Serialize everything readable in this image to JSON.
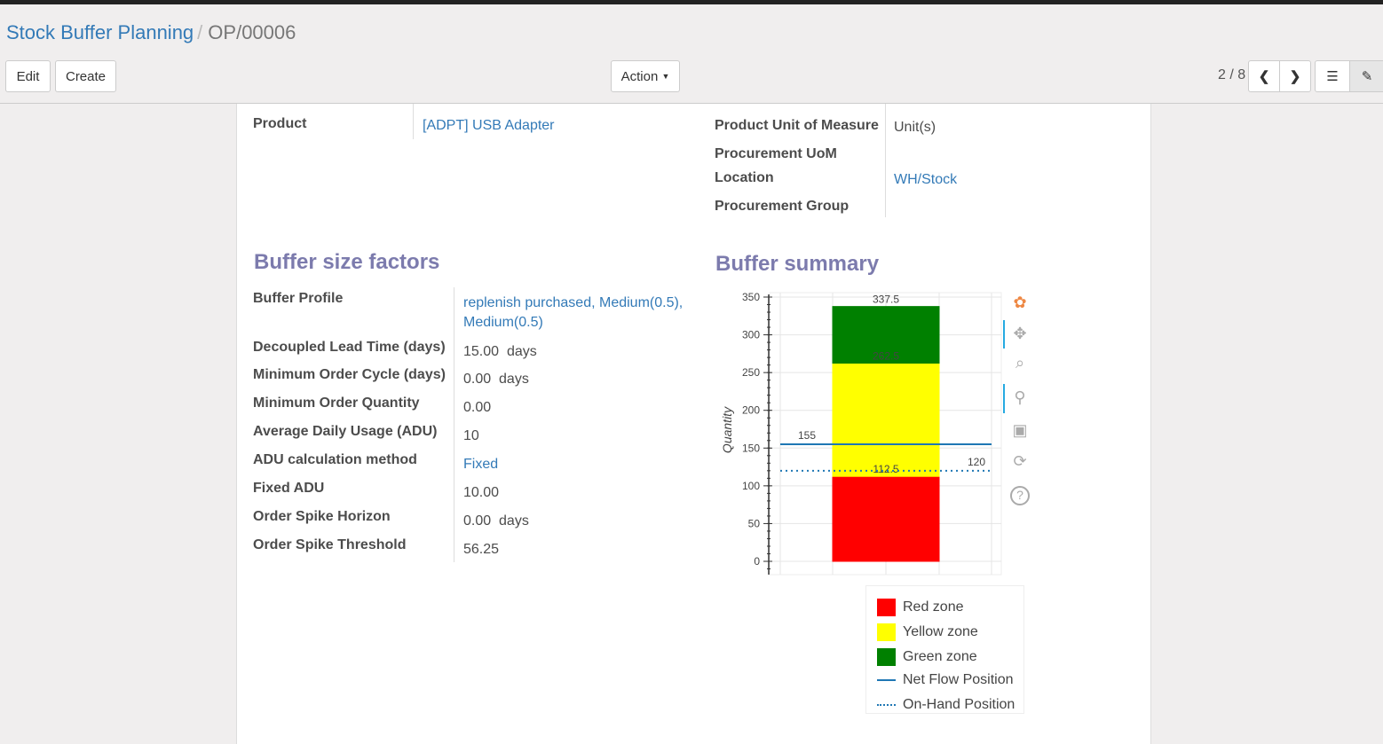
{
  "breadcrumb": {
    "parent": "Stock Buffer Planning",
    "current": "OP/00006"
  },
  "toolbar": {
    "edit": "Edit",
    "create": "Create",
    "action": "Action",
    "pager": "2 / 8"
  },
  "fields": {
    "product_label": "Product",
    "product_value": "[ADPT] USB Adapter",
    "uom_label": "Product Unit of Measure",
    "uom_value": "Unit(s)",
    "proc_uom_label": "Procurement UoM",
    "location_label": "Location",
    "location_value": "WH/Stock",
    "proc_group_label": "Procurement Group"
  },
  "factors": {
    "title": "Buffer size factors",
    "rows": [
      {
        "label": "Buffer Profile",
        "value": "replenish purchased, Medium(0.5), Medium(0.5)",
        "link": true
      },
      {
        "label": "Decoupled Lead Time (days)",
        "value": "15.00",
        "unit": "days"
      },
      {
        "label": "Minimum Order Cycle (days)",
        "value": "0.00",
        "unit": "days"
      },
      {
        "label": "Minimum Order Quantity",
        "value": "0.00"
      },
      {
        "label": "Average Daily Usage (ADU)",
        "value": "10"
      },
      {
        "label": "ADU calculation method",
        "value": "Fixed",
        "link": true
      },
      {
        "label": "Fixed ADU",
        "value": "10.00"
      },
      {
        "label": "Order Spike Horizon",
        "value": "0.00",
        "unit": "days"
      },
      {
        "label": "Order Spike Threshold",
        "value": "56.25"
      }
    ]
  },
  "summary": {
    "title": "Buffer summary"
  },
  "chart_data": {
    "type": "bar",
    "stacked": true,
    "ylabel": "Quantity",
    "ylim": [
      0,
      350
    ],
    "yticks": [
      "0",
      "50",
      "100",
      "150",
      "200",
      "250",
      "300",
      "350"
    ],
    "zones": [
      {
        "name": "Red zone",
        "from": 0,
        "to": 112.5,
        "color": "#ff0000",
        "label": "112.5"
      },
      {
        "name": "Yellow zone",
        "from": 112.5,
        "to": 262.5,
        "color": "#ffff00",
        "label": "262.5"
      },
      {
        "name": "Green zone",
        "from": 262.5,
        "to": 337.5,
        "color": "#008000",
        "label": "337.5"
      }
    ],
    "lines": [
      {
        "name": "Net Flow Position",
        "value": 155,
        "label": "155",
        "style": "solid",
        "color": "#1f77b4"
      },
      {
        "name": "On-Hand Position",
        "value": 120,
        "label": "120",
        "style": "dotted",
        "color": "#1f77b4"
      }
    ],
    "grid": true,
    "legend": "bottom-right"
  },
  "tools": [
    "bokeh-logo-icon",
    "pan-icon",
    "box-zoom-icon",
    "wheel-zoom-icon",
    "save-icon",
    "reset-icon",
    "help-icon"
  ]
}
